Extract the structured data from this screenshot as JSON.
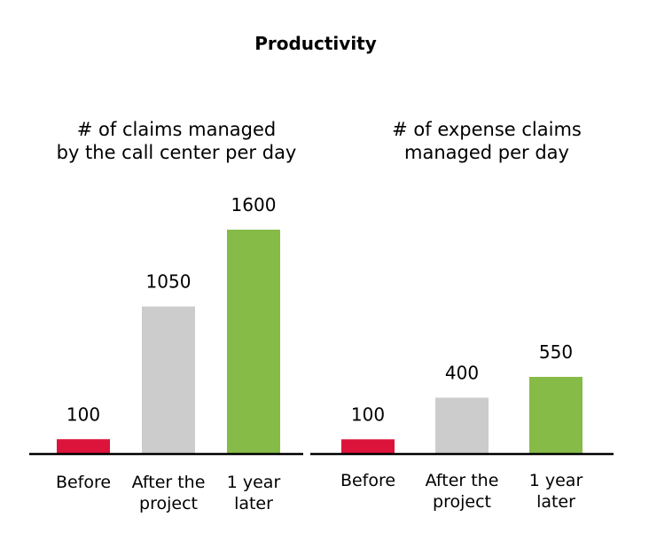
{
  "figure": {
    "title": "Productivity"
  },
  "chart_data": [
    {
      "type": "bar",
      "title_lines": [
        "# of claims managed",
        "by the call center per day"
      ],
      "categories": [
        {
          "lines": [
            "Before"
          ]
        },
        {
          "lines": [
            "After the",
            "project"
          ]
        },
        {
          "lines": [
            "1 year",
            "later"
          ]
        }
      ],
      "values": [
        100,
        1050,
        1600
      ],
      "value_labels": [
        "100",
        "1050",
        "1600"
      ],
      "colors": [
        "#dc143c",
        "#cccccc",
        "#86bb48"
      ],
      "grid": false,
      "legend": "none"
    },
    {
      "type": "bar",
      "title_lines": [
        "# of expense claims",
        "managed per day"
      ],
      "categories": [
        {
          "lines": [
            "Before"
          ]
        },
        {
          "lines": [
            "After the",
            "project"
          ]
        },
        {
          "lines": [
            "1 year",
            "later"
          ]
        }
      ],
      "values": [
        100,
        400,
        550
      ],
      "value_labels": [
        "100",
        "400",
        "550"
      ],
      "colors": [
        "#dc143c",
        "#cccccc",
        "#86bb48"
      ],
      "grid": false,
      "legend": "none"
    }
  ]
}
